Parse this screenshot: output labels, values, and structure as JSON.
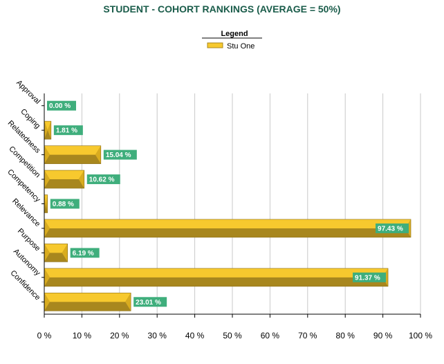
{
  "chart_data": {
    "type": "bar",
    "orientation": "horizontal",
    "title": "STUDENT - COHORT RANKINGS (AVERAGE = 50%)",
    "legend": {
      "title": "Legend",
      "placement": "top-center"
    },
    "categories": [
      "Approval",
      "Coping",
      "Relatedness",
      "Competition",
      "Competency",
      "Relevance",
      "Purpose",
      "Autonomy",
      "Confidence"
    ],
    "series": [
      {
        "name": "Stu One",
        "values": [
          0.0,
          1.81,
          15.04,
          10.62,
          0.88,
          97.43,
          6.19,
          91.37,
          23.01
        ],
        "labels": [
          "0.00 %",
          "1.81 %",
          "15.04 %",
          "10.62 %",
          "0.88 %",
          "97.43 %",
          "6.19 %",
          "91.37 %",
          "23.01 %"
        ]
      }
    ],
    "xlim": [
      0,
      100
    ],
    "xticks": [
      0,
      10,
      20,
      30,
      40,
      50,
      60,
      70,
      80,
      90,
      100
    ],
    "xtick_labels": [
      "0 %",
      "10 %",
      "20 %",
      "30 %",
      "40 %",
      "50 %",
      "60 %",
      "70 %",
      "80 %",
      "90 %",
      "100 %"
    ],
    "grid": {
      "vertical": true,
      "horizontal": false
    },
    "colors": {
      "title": "#1a5c4a",
      "bar_top": "#f7c92e",
      "bar_bottom": "#a8871e",
      "bar_cap": "#d9ac20",
      "label_bg": "#3fae7c",
      "grid": "#c8c8c8",
      "axis": "#000000"
    }
  }
}
